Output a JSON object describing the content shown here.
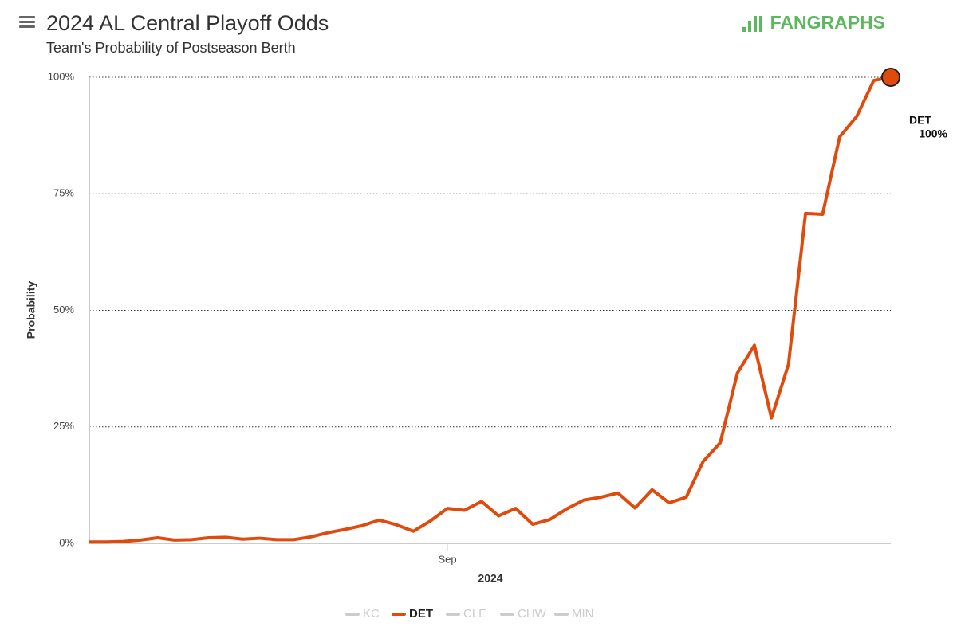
{
  "title": "2024 AL Central Playoff Odds",
  "subtitle": "Team's Probability of Postseason Berth",
  "logo": "FANGRAPHS",
  "chart_data": {
    "type": "line",
    "xlabel": "2024",
    "ylabel": "Probability",
    "categories": [
      null,
      null,
      null,
      null,
      null,
      null,
      null,
      null,
      null,
      null,
      null,
      null,
      null,
      null,
      null,
      null,
      null,
      null,
      null,
      null,
      null,
      "Sep",
      null,
      null,
      null,
      null,
      null,
      null,
      null,
      null,
      null,
      null,
      null,
      null,
      null,
      null,
      null,
      null,
      null,
      null,
      null,
      null,
      null,
      null,
      null,
      null,
      null,
      null
    ],
    "ylim": [
      0,
      100
    ],
    "yticks": [
      {
        "value": 0,
        "label": "0%"
      },
      {
        "value": 25,
        "label": "25%"
      },
      {
        "value": 50,
        "label": "50%"
      },
      {
        "value": 75,
        "label": "75%"
      },
      {
        "value": 100,
        "label": "100%"
      }
    ],
    "grid": true,
    "series": [
      {
        "name": "KC",
        "color": "#cccccc",
        "visible": false
      },
      {
        "name": "DET",
        "color": "#e04a0c",
        "visible": true,
        "end_name": "DET",
        "values": [
          0.3,
          0.3,
          0.4,
          0.7,
          1.2,
          0.7,
          0.8,
          1.2,
          1.3,
          0.9,
          1.1,
          0.8,
          0.8,
          1.4,
          2.3,
          3.0,
          3.8,
          5.0,
          4.0,
          2.6,
          4.8,
          7.5,
          7.1,
          9.0,
          5.9,
          7.5,
          4.1,
          5.1,
          7.4,
          9.3,
          9.9,
          10.8,
          7.6,
          11.5,
          8.7,
          9.9,
          17.6,
          21.6,
          36.5,
          42.5,
          26.9,
          38.4,
          70.8,
          70.6,
          87.2,
          91.6,
          99.3,
          100
        ],
        "value_labels": [
          null,
          null,
          null,
          null,
          null,
          null,
          null,
          null,
          null,
          null,
          null,
          null,
          null,
          null,
          null,
          null,
          null,
          null,
          null,
          null,
          null,
          null,
          null,
          null,
          null,
          null,
          null,
          null,
          null,
          null,
          null,
          null,
          null,
          null,
          null,
          null,
          null,
          null,
          null,
          null,
          null,
          null,
          null,
          null,
          null,
          null,
          null,
          "100%"
        ]
      },
      {
        "name": "CLE",
        "color": "#cccccc",
        "visible": false
      },
      {
        "name": "CHW",
        "color": "#cccccc",
        "visible": false
      },
      {
        "name": "MIN",
        "color": "#cccccc",
        "visible": false
      }
    ]
  }
}
